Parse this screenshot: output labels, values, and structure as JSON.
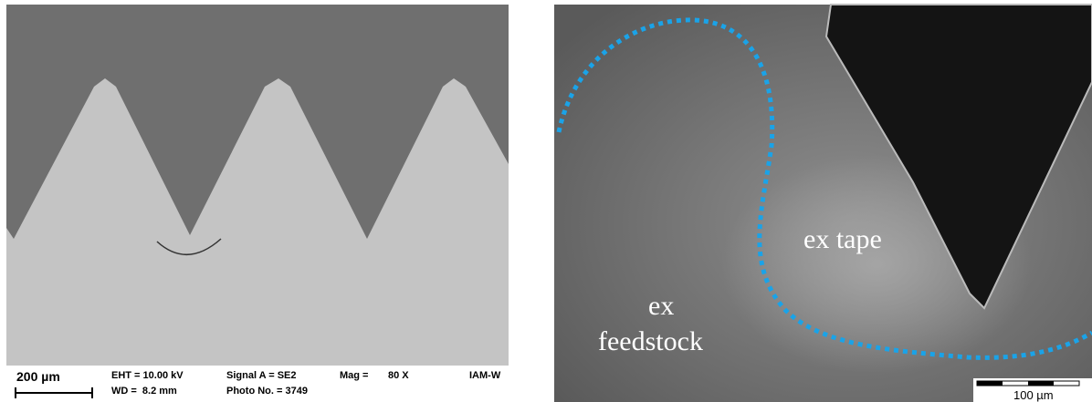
{
  "left_panel": {
    "scale_bar": "200 µm",
    "eht": "EHT = 10.00 kV",
    "wd": "WD =  8.2 mm",
    "signal": "Signal A = SE2",
    "photo": "Photo No. = 3749",
    "mag_label": "Mag =",
    "mag_value": "80 X",
    "institute": "IAM-W"
  },
  "right_panel": {
    "region_1": "ex tape",
    "region_2_line_1": "ex",
    "region_2_line_2": "feedstock",
    "scale_bar": "100 µm"
  }
}
